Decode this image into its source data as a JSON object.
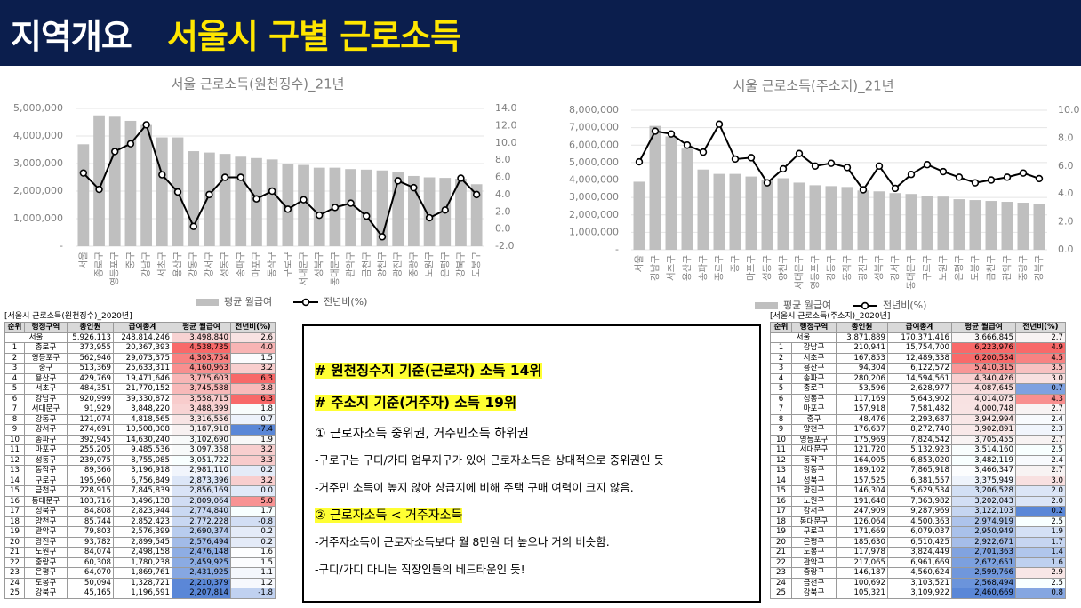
{
  "header": {
    "label": "지역개요",
    "title": "서울시 구별 근로소득"
  },
  "chart_data": [
    {
      "type": "bar-line",
      "title": "서울 근로소득(원천징수)_21년",
      "categories": [
        "서울",
        "종로구",
        "영등포구",
        "중구",
        "강남구",
        "서초구",
        "용산구",
        "강동구",
        "강서구",
        "성동구",
        "송파구",
        "마포구",
        "동작구",
        "구로구",
        "서대문구",
        "성북구",
        "동대문구",
        "관악구",
        "금천구",
        "양천구",
        "광진구",
        "중랑구",
        "노원구",
        "은평구",
        "강북구",
        "도봉구"
      ],
      "series": [
        {
          "name": "평균 월급여",
          "color": "#bfbfbf",
          "values": [
            3700000,
            4750000,
            4700000,
            4550000,
            4400000,
            3950000,
            3950000,
            3450000,
            3400000,
            3350000,
            3250000,
            3200000,
            3150000,
            3000000,
            2950000,
            2850000,
            2850000,
            2800000,
            2780000,
            2750000,
            2700000,
            2550000,
            2500000,
            2480000,
            2450000,
            2250000
          ]
        },
        {
          "name": "전년비(%)",
          "color": "#000000",
          "axis": "y2",
          "values": [
            6.5,
            4.6,
            9.0,
            9.9,
            12.1,
            6.3,
            4.3,
            0.3,
            4.0,
            6.0,
            6.0,
            3.5,
            4.4,
            2.3,
            3.4,
            1.6,
            2.5,
            3.0,
            1.5,
            -0.9,
            5.6,
            4.8,
            1.3,
            2.2,
            5.9,
            4.0
          ]
        }
      ],
      "ylim": [
        0,
        5000000
      ],
      "yticks": [
        {
          "value": 0,
          "label": "-"
        },
        {
          "value": 1000000,
          "label": "1,000,000"
        },
        {
          "value": 2000000,
          "label": "2,000,000"
        },
        {
          "value": 3000000,
          "label": "3,000,000"
        },
        {
          "value": 4000000,
          "label": "4,000,000"
        },
        {
          "value": 5000000,
          "label": "5,000,000"
        }
      ],
      "y2lim": [
        -2,
        14
      ],
      "y2ticks": [
        {
          "value": -2,
          "label": "-2.0"
        },
        {
          "value": 0,
          "label": "0.0"
        },
        {
          "value": 2,
          "label": "2.0"
        },
        {
          "value": 4,
          "label": "4.0"
        },
        {
          "value": 6,
          "label": "6.0"
        },
        {
          "value": 8,
          "label": "8.0"
        },
        {
          "value": 10,
          "label": "10.0"
        },
        {
          "value": 12,
          "label": "12.0"
        },
        {
          "value": 14,
          "label": "14.0"
        }
      ],
      "grid": true,
      "legend": "bottom"
    },
    {
      "type": "bar-line",
      "title": "서울 근로소득(주소지)_21년",
      "categories": [
        "서울",
        "강남구",
        "서초구",
        "용산구",
        "송파구",
        "종로구",
        "중구",
        "마포구",
        "성동구",
        "양천구",
        "서대문구",
        "영등포구",
        "강동구",
        "동작구",
        "광진구",
        "성북구",
        "강서구",
        "동대문구",
        "구로구",
        "노원구",
        "은평구",
        "도봉구",
        "금천구",
        "관악구",
        "중랑구",
        "강북구"
      ],
      "series": [
        {
          "name": "평균 월급여",
          "color": "#bfbfbf",
          "values": [
            3900000,
            7100000,
            6500000,
            5800000,
            4600000,
            4350000,
            4350000,
            4200000,
            4000000,
            4100000,
            3850000,
            3700000,
            3650000,
            3600000,
            3400000,
            3350000,
            3250000,
            3200000,
            3100000,
            3050000,
            2900000,
            2850000,
            2800000,
            2750000,
            2700000,
            2600000
          ]
        },
        {
          "name": "전년비(%)",
          "color": "#000000",
          "axis": "y2",
          "values": [
            6.3,
            8.5,
            8.3,
            7.5,
            7.0,
            9.0,
            6.5,
            6.6,
            4.8,
            5.8,
            6.9,
            6.0,
            6.2,
            5.9,
            4.3,
            6.0,
            4.4,
            5.4,
            6.1,
            5.6,
            5.2,
            4.8,
            5.0,
            5.2,
            5.5,
            5.1
          ]
        }
      ],
      "ylim": [
        0,
        8000000
      ],
      "yticks": [
        {
          "value": 0,
          "label": "-"
        },
        {
          "value": 1000000,
          "label": "1,000,000"
        },
        {
          "value": 2000000,
          "label": "2,000,000"
        },
        {
          "value": 3000000,
          "label": "3,000,000"
        },
        {
          "value": 4000000,
          "label": "4,000,000"
        },
        {
          "value": 5000000,
          "label": "5,000,000"
        },
        {
          "value": 6000000,
          "label": "6,000,000"
        },
        {
          "value": 7000000,
          "label": "7,000,000"
        },
        {
          "value": 8000000,
          "label": "8,000,000"
        }
      ],
      "y2lim": [
        0,
        10
      ],
      "y2ticks": [
        {
          "value": 0,
          "label": "0.0"
        },
        {
          "value": 2,
          "label": "2.0"
        },
        {
          "value": 4,
          "label": "4.0"
        },
        {
          "value": 6,
          "label": "6.0"
        },
        {
          "value": 8,
          "label": "8.0"
        },
        {
          "value": 10,
          "label": "10.0"
        }
      ],
      "grid": true,
      "legend": "bottom"
    }
  ],
  "tables": [
    {
      "title": "[서울시 근로소득(원천징수)_2020년]",
      "columns": [
        "순위",
        "행정구역",
        "총인원",
        "급여총계",
        "평균 월급여",
        "전년비(%)"
      ],
      "rows": [
        [
          "서울",
          "5,926,113",
          "248,814,246",
          "3,498,840",
          "2.6"
        ],
        [
          "1",
          "종로구",
          "373,955",
          "20,367,393",
          "4,538,735",
          "4.0"
        ],
        [
          "2",
          "영등포구",
          "562,946",
          "29,073,375",
          "4,303,754",
          "1.5"
        ],
        [
          "3",
          "중구",
          "513,369",
          "25,633,311",
          "4,160,963",
          "3.2"
        ],
        [
          "4",
          "용산구",
          "429,769",
          "19,471,646",
          "3,775,603",
          "6.3"
        ],
        [
          "5",
          "서초구",
          "484,351",
          "21,770,152",
          "3,745,588",
          "3.8"
        ],
        [
          "6",
          "강남구",
          "920,999",
          "39,330,872",
          "3,558,715",
          "6.3"
        ],
        [
          "7",
          "서대문구",
          "91,929",
          "3,848,220",
          "3,488,399",
          "1.8"
        ],
        [
          "8",
          "강동구",
          "121,074",
          "4,818,565",
          "3,316,556",
          "0.7"
        ],
        [
          "9",
          "강서구",
          "274,691",
          "10,508,308",
          "3,187,918",
          "-7.4"
        ],
        [
          "10",
          "송파구",
          "392,945",
          "14,630,240",
          "3,102,690",
          "1.9"
        ],
        [
          "11",
          "마포구",
          "255,205",
          "9,485,536",
          "3,097,358",
          "3.2"
        ],
        [
          "12",
          "성동구",
          "239,075",
          "8,755,085",
          "3,051,722",
          "3.3"
        ],
        [
          "13",
          "동작구",
          "89,366",
          "3,196,918",
          "2,981,110",
          "0.2"
        ],
        [
          "14",
          "구로구",
          "195,960",
          "6,756,849",
          "2,873,396",
          "3.2"
        ],
        [
          "15",
          "금천구",
          "228,915",
          "7,845,839",
          "2,856,169",
          "0.0"
        ],
        [
          "16",
          "동대문구",
          "103,716",
          "3,496,138",
          "2,809,064",
          "5.0"
        ],
        [
          "17",
          "성북구",
          "84,808",
          "2,823,944",
          "2,774,840",
          "1.7"
        ],
        [
          "18",
          "양천구",
          "85,744",
          "2,852,423",
          "2,772,228",
          "-0.8"
        ],
        [
          "19",
          "관악구",
          "79,803",
          "2,576,399",
          "2,690,374",
          "0.2"
        ],
        [
          "20",
          "광진구",
          "93,782",
          "2,899,545",
          "2,576,494",
          "0.2"
        ],
        [
          "21",
          "노원구",
          "84,074",
          "2,498,158",
          "2,476,148",
          "1.6"
        ],
        [
          "22",
          "중랑구",
          "60,308",
          "1,780,238",
          "2,459,925",
          "1.5"
        ],
        [
          "23",
          "은평구",
          "64,070",
          "1,869,761",
          "2,431,925",
          "1.1"
        ],
        [
          "24",
          "도봉구",
          "50,094",
          "1,328,721",
          "2,210,379",
          "1.2"
        ],
        [
          "25",
          "강북구",
          "45,165",
          "1,196,591",
          "2,207,814",
          "-1.8"
        ]
      ]
    },
    {
      "title": "[서울시 근로소득(주소지)_2020년]",
      "columns": [
        "순위",
        "행정구역",
        "총인원",
        "급여총계",
        "평균 월급여",
        "전년비(%)"
      ],
      "rows": [
        [
          "서울",
          "3,871,889",
          "170,371,416",
          "3,666,845",
          "2.7"
        ],
        [
          "1",
          "강남구",
          "210,941",
          "15,754,700",
          "6,223,976",
          "4.9"
        ],
        [
          "2",
          "서초구",
          "167,853",
          "12,489,338",
          "6,200,534",
          "4.5"
        ],
        [
          "3",
          "용산구",
          "94,304",
          "6,122,572",
          "5,410,315",
          "3.5"
        ],
        [
          "4",
          "송파구",
          "280,206",
          "14,594,561",
          "4,340,426",
          "3.0"
        ],
        [
          "5",
          "종로구",
          "53,596",
          "2,628,977",
          "4,087,645",
          "0.7"
        ],
        [
          "6",
          "성동구",
          "117,169",
          "5,643,902",
          "4,014,075",
          "4.3"
        ],
        [
          "7",
          "마포구",
          "157,918",
          "7,581,482",
          "4,000,748",
          "2.7"
        ],
        [
          "8",
          "중구",
          "48,476",
          "2,293,687",
          "3,942,994",
          "2.4"
        ],
        [
          "9",
          "양천구",
          "176,637",
          "8,272,740",
          "3,902,891",
          "2.3"
        ],
        [
          "10",
          "영등포구",
          "175,969",
          "7,824,542",
          "3,705,455",
          "2.7"
        ],
        [
          "11",
          "서대문구",
          "121,720",
          "5,132,923",
          "3,514,160",
          "2.5"
        ],
        [
          "12",
          "동작구",
          "164,005",
          "6,853,020",
          "3,482,119",
          "2.4"
        ],
        [
          "13",
          "강동구",
          "189,102",
          "7,865,918",
          "3,466,347",
          "2.7"
        ],
        [
          "14",
          "성북구",
          "157,525",
          "6,381,557",
          "3,375,949",
          "3.0"
        ],
        [
          "15",
          "광진구",
          "146,304",
          "5,629,534",
          "3,206,528",
          "2.0"
        ],
        [
          "16",
          "노원구",
          "191,648",
          "7,363,982",
          "3,202,043",
          "2.0"
        ],
        [
          "17",
          "강서구",
          "247,909",
          "9,287,969",
          "3,122,103",
          "0.2"
        ],
        [
          "18",
          "동대문구",
          "126,064",
          "4,500,363",
          "2,974,919",
          "2.5"
        ],
        [
          "19",
          "구로구",
          "171,669",
          "6,079,037",
          "2,950,949",
          "1.9"
        ],
        [
          "20",
          "은평구",
          "185,630",
          "6,510,425",
          "2,922,671",
          "1.7"
        ],
        [
          "21",
          "도봉구",
          "117,978",
          "3,824,449",
          "2,701,363",
          "1.4"
        ],
        [
          "22",
          "관악구",
          "217,065",
          "6,961,669",
          "2,672,651",
          "1.6"
        ],
        [
          "23",
          "중랑구",
          "146,187",
          "4,560,624",
          "2,599,766",
          "2.9"
        ],
        [
          "24",
          "금천구",
          "100,692",
          "3,103,521",
          "2,568,494",
          "2.5"
        ],
        [
          "25",
          "강북구",
          "105,321",
          "3,109,922",
          "2,460,669",
          "0.8"
        ]
      ]
    }
  ],
  "notes": [
    {
      "text": "# 원천징수지 기준(근로자) 소득 14위",
      "style": "heading"
    },
    {
      "text": "# 주소지 기준(거주자) 소득 19위",
      "style": "heading"
    },
    {
      "text": "① 근로자소득 중위권, 거주민소득 하위권",
      "style": "point"
    },
    {
      "text": "-구로구는 구디/가디 업무지구가 있어 근로자소득은 상대적으로 중위권인 듯",
      "style": "body"
    },
    {
      "text": "-거주민 소득이 높지 않아 상급지에 비해 주택 구매 여력이 크지 않음.",
      "style": "body"
    },
    {
      "text": "② 근로자소득 < 거주자소득",
      "style": "point-highlight"
    },
    {
      "text": "-거주자소득이 근로자소득보다 월 8만원 더 높으나 거의 비슷함.",
      "style": "body"
    },
    {
      "text": "-구디/가디 다니는 직장인들의 베드타운인 듯!",
      "style": "body"
    }
  ]
}
